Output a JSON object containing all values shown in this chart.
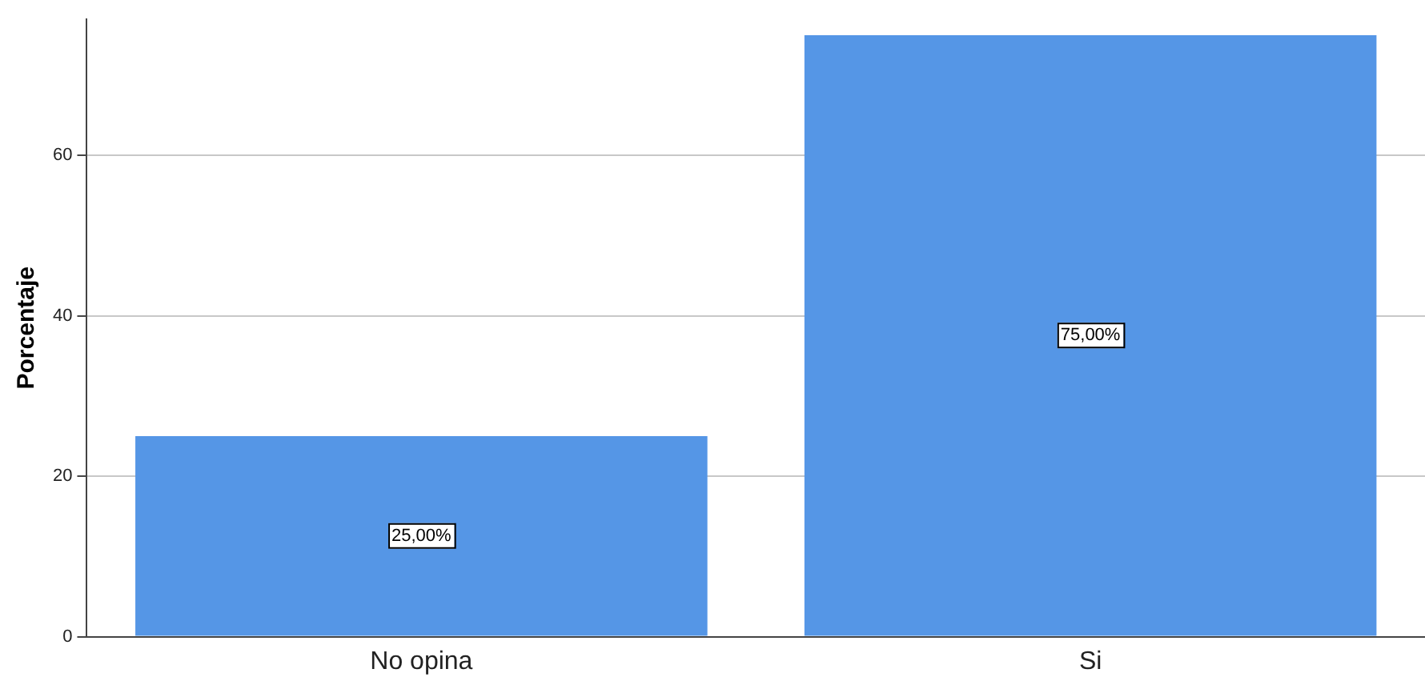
{
  "chart_data": {
    "type": "bar",
    "ylabel": "Porcentaje",
    "categories": [
      "No opina",
      "Si"
    ],
    "values": [
      25,
      75
    ],
    "color": "#5596e6",
    "value_labels": [
      "25,00%",
      "75,00%"
    ],
    "ylim": [
      0,
      77
    ],
    "yticks": [
      0,
      20,
      40,
      60
    ],
    "grid": "y",
    "legend": false
  }
}
